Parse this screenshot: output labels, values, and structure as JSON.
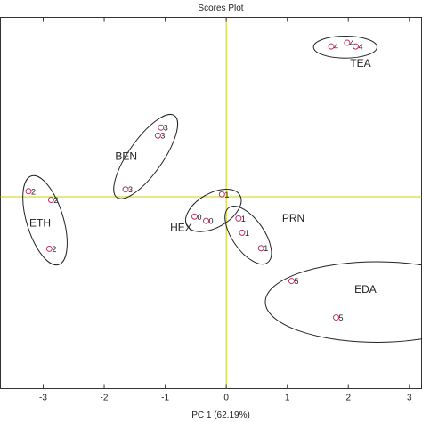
{
  "chart_data": {
    "type": "scatter",
    "title": "Scores Plot",
    "xlabel": "PC 1 (62.19%)",
    "ylabel": "",
    "xlim": [
      -3.7,
      3.2
    ],
    "ylim": [
      -3.1,
      2.9
    ],
    "xticks": [
      -3,
      -2,
      -1,
      0,
      1,
      2,
      3
    ],
    "xtick_labels": [
      "-3",
      "-2",
      "-1",
      "0",
      "1",
      "2",
      "3"
    ],
    "marker_color": "#c0306a",
    "reference_line_color": "#c8d400",
    "points": [
      {
        "x": 1.72,
        "y": 2.43,
        "label": "4"
      },
      {
        "x": 1.98,
        "y": 2.49,
        "label": "4"
      },
      {
        "x": 2.12,
        "y": 2.43,
        "label": "4"
      },
      {
        "x": -1.07,
        "y": 1.12,
        "label": "3"
      },
      {
        "x": -1.12,
        "y": 0.99,
        "label": "3"
      },
      {
        "x": -1.65,
        "y": 0.12,
        "label": "3"
      },
      {
        "x": -3.24,
        "y": 0.09,
        "label": "2"
      },
      {
        "x": -2.87,
        "y": -0.05,
        "label": "2"
      },
      {
        "x": -2.9,
        "y": -0.84,
        "label": "2"
      },
      {
        "x": -0.07,
        "y": 0.04,
        "label": "1"
      },
      {
        "x": -0.52,
        "y": -0.32,
        "label": "0"
      },
      {
        "x": -0.33,
        "y": -0.39,
        "label": "0"
      },
      {
        "x": 0.2,
        "y": -0.35,
        "label": "1"
      },
      {
        "x": 0.26,
        "y": -0.58,
        "label": "1"
      },
      {
        "x": 0.57,
        "y": -0.83,
        "label": "1"
      },
      {
        "x": 1.07,
        "y": -1.36,
        "label": "5"
      },
      {
        "x": 1.8,
        "y": -1.95,
        "label": "5"
      }
    ],
    "groups": [
      {
        "label": "TEA",
        "cx": 1.95,
        "cy": 2.42,
        "rx": 0.52,
        "ry": 0.18,
        "angle": 0,
        "label_x": 2.2,
        "label_y": 2.1
      },
      {
        "label": "BEN",
        "cx": -1.32,
        "cy": 0.65,
        "rx": 0.82,
        "ry": 0.28,
        "angle": -55,
        "label_x": -1.64,
        "label_y": 0.6
      },
      {
        "label": "ETH",
        "cx": -2.97,
        "cy": -0.38,
        "rx": 0.76,
        "ry": 0.3,
        "angle": 73,
        "label_x": -3.05,
        "label_y": -0.48
      },
      {
        "label": "HEX",
        "cx": -0.21,
        "cy": -0.22,
        "rx": 0.5,
        "ry": 0.28,
        "angle": -30,
        "label_x": -0.74,
        "label_y": -0.55
      },
      {
        "label": "PRN",
        "cx": 0.36,
        "cy": -0.62,
        "rx": 0.55,
        "ry": 0.26,
        "angle": 55,
        "label_x": 1.1,
        "label_y": -0.4
      },
      {
        "label": "EDA",
        "cx": 2.47,
        "cy": -1.7,
        "rx": 1.83,
        "ry": 0.66,
        "angle": 0,
        "label_x": 2.28,
        "label_y": -1.55
      }
    ]
  }
}
